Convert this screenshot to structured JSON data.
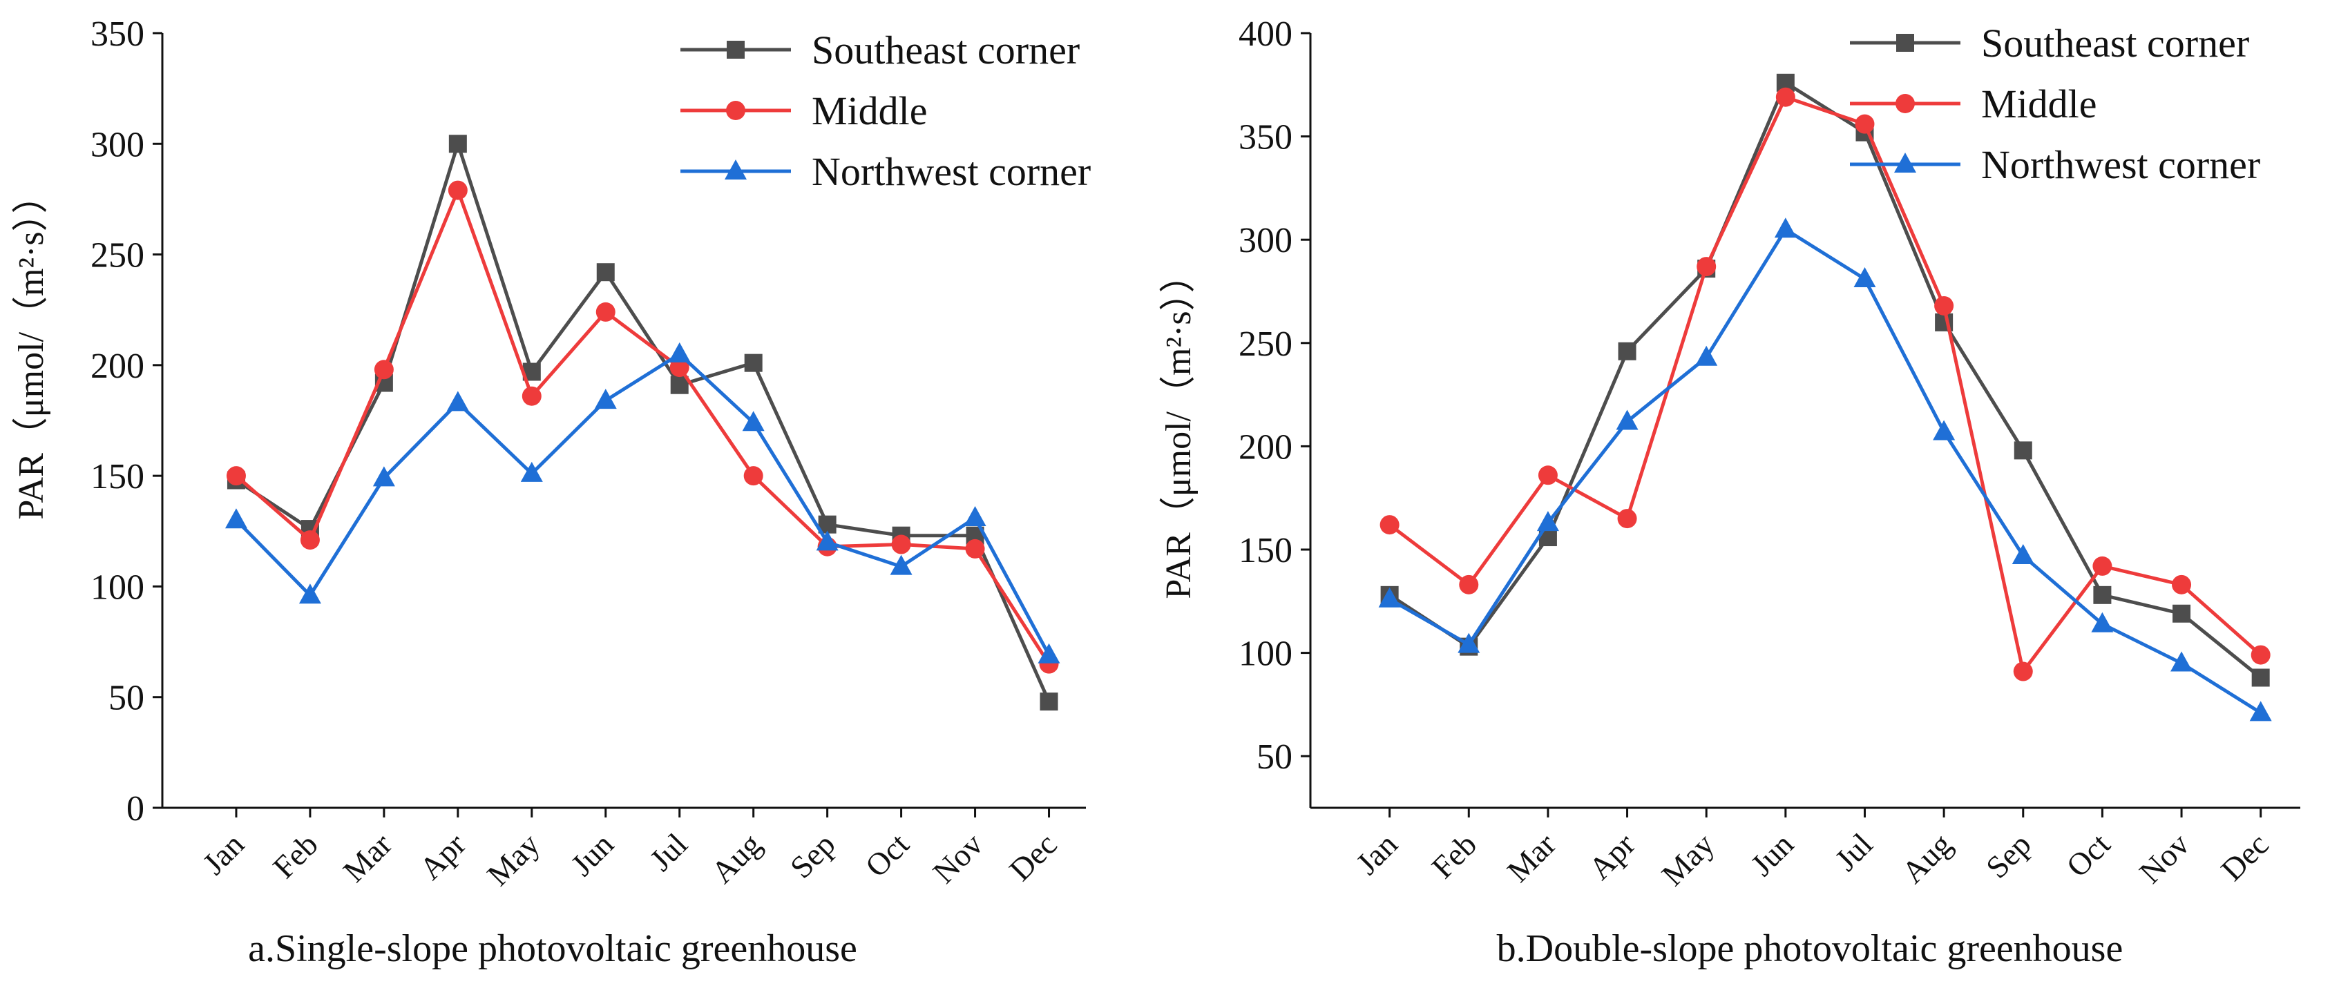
{
  "chart_data": [
    {
      "type": "line",
      "title": "a.Single-slope photovoltaic greenhouse",
      "xlabel": "",
      "ylabel": "PAR（μmol/（m²·s））",
      "categories": [
        "Jan",
        "Feb",
        "Mar",
        "Apr",
        "May",
        "Jun",
        "Jul",
        "Aug",
        "Sep",
        "Oct",
        "Nov",
        "Dec"
      ],
      "ylim": [
        0,
        350
      ],
      "yticks": [
        0,
        50,
        100,
        150,
        200,
        250,
        300,
        350
      ],
      "grid": false,
      "legend_position": "top-right",
      "series": [
        {
          "name": "Southeast corner",
          "color": "#4d4d4d",
          "marker": "square",
          "values": [
            148,
            126,
            192,
            300,
            197,
            242,
            191,
            201,
            128,
            123,
            123,
            48
          ]
        },
        {
          "name": "Middle",
          "color": "#ee3b3b",
          "marker": "circle",
          "values": [
            150,
            121,
            198,
            279,
            186,
            224,
            199,
            150,
            118,
            119,
            117,
            65
          ]
        },
        {
          "name": "Northwest corner",
          "color": "#1f6fd6",
          "marker": "triangle",
          "values": [
            130,
            96,
            149,
            183,
            151,
            184,
            205,
            174,
            120,
            109,
            131,
            69
          ]
        }
      ]
    },
    {
      "type": "line",
      "title": "b.Double-slope photovoltaic greenhouse",
      "xlabel": "",
      "ylabel": "PAR（μmol/（m²·s））",
      "categories": [
        "Jan",
        "Feb",
        "Mar",
        "Apr",
        "May",
        "Jun",
        "Jul",
        "Aug",
        "Sep",
        "Oct",
        "Nov",
        "Dec"
      ],
      "ylim": [
        25,
        400
      ],
      "yticks": [
        50,
        100,
        150,
        200,
        250,
        300,
        350,
        400
      ],
      "grid": false,
      "legend_position": "top-right",
      "series": [
        {
          "name": "Southeast corner",
          "color": "#4d4d4d",
          "marker": "square",
          "values": [
            128,
            103,
            156,
            246,
            286,
            376,
            352,
            260,
            198,
            128,
            119,
            88
          ]
        },
        {
          "name": "Middle",
          "color": "#ee3b3b",
          "marker": "circle",
          "values": [
            162,
            133,
            186,
            165,
            287,
            369,
            356,
            268,
            91,
            142,
            133,
            99
          ]
        },
        {
          "name": "Northwest corner",
          "color": "#1f6fd6",
          "marker": "triangle",
          "values": [
            126,
            104,
            163,
            212,
            243,
            305,
            281,
            207,
            147,
            114,
            95,
            71
          ]
        }
      ]
    }
  ]
}
